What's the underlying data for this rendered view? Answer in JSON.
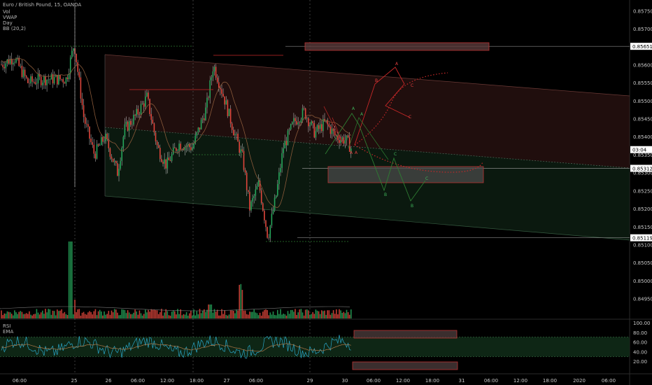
{
  "header": {
    "symbol_line": "Euro / British Pound, 15, OANDA",
    "indicator_labels": [
      "Vol",
      "VWAP",
      "Day",
      "BB (20,2)"
    ]
  },
  "rsi_panel": {
    "labels": [
      "RSI",
      "EMA"
    ]
  },
  "price_axis": {
    "ticks": [
      "0.85750",
      "0.85700",
      "0.85650",
      "0.85600",
      "0.85550",
      "0.85500",
      "0.85450",
      "0.85400",
      "0.85350",
      "0.85300",
      "0.85250",
      "0.85200",
      "0.85150",
      "0.85100",
      "0.85050",
      "0.85000",
      "0.84950"
    ],
    "highlights": [
      {
        "label": "0.85651",
        "value": 0.85651,
        "fill": "#ffffff",
        "text": "#000000"
      },
      {
        "label": "03:04",
        "value": 0.85364,
        "fill": "#ffffff",
        "text": "#000000"
      },
      {
        "label": "0.85312",
        "value": 0.85312,
        "fill": "#ffffff",
        "text": "#000000"
      },
      {
        "label": "0.85119",
        "value": 0.85119,
        "fill": "#ffffff",
        "text": "#000000"
      }
    ]
  },
  "rsi_axis": {
    "ticks": [
      "100.00",
      "80.00",
      "60.00",
      "40.00",
      "20.00"
    ]
  },
  "time_axis": {
    "ticks": [
      "06:00",
      "25",
      "26",
      "06:00",
      "12:00",
      "18:00",
      "27",
      "06:00",
      "29",
      "30",
      "06:00",
      "12:00",
      "18:00",
      "31",
      "06:00",
      "12:00",
      "18:00",
      "2020",
      "06:00"
    ]
  },
  "chart_data": {
    "type": "candlestick",
    "instrument": "Euro / British Pound",
    "interval": "15",
    "ylim": [
      0.8492,
      0.8577
    ],
    "rsi_ylim": [
      0,
      100
    ],
    "annotations": {
      "pattern_labels_red": [
        "A",
        "B",
        "C",
        "C"
      ],
      "pattern_labels_green": [
        "A",
        "A",
        "B",
        "C",
        "B",
        "C"
      ],
      "pivot_labels": [
        "A",
        "A"
      ]
    },
    "colors": {
      "up": "#26a65b",
      "down": "#e0463c",
      "channel_upper": "#3a1a18",
      "channel_lower": "#0f2316",
      "rsi_band": "#0f2a17",
      "zone_grey": "#4a4a4a"
    }
  }
}
